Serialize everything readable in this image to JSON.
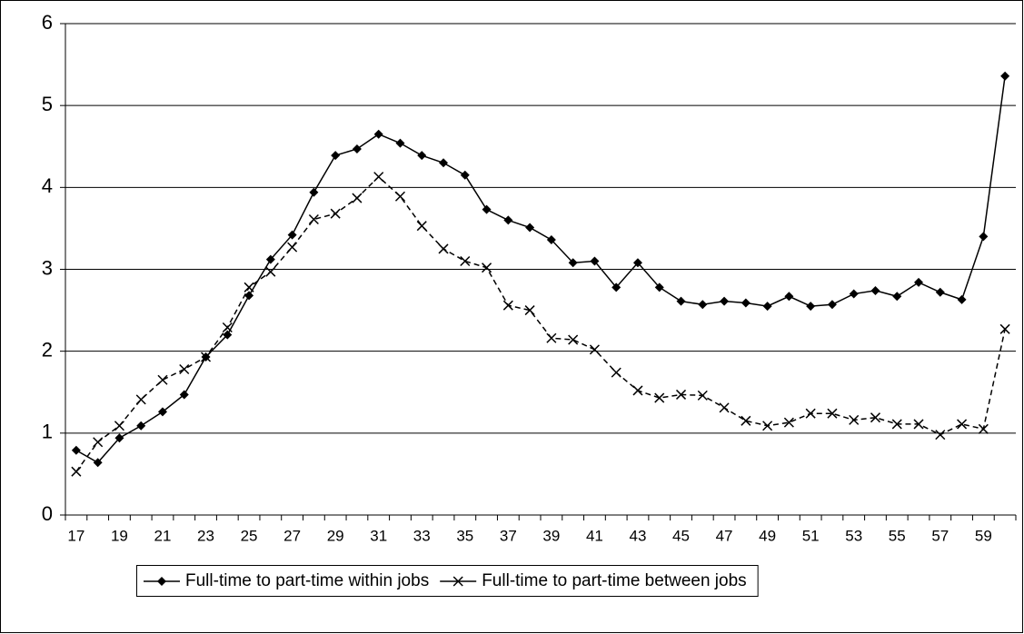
{
  "chart_data": {
    "type": "line",
    "categories": [
      "17",
      null,
      "19",
      null,
      "21",
      null,
      "23",
      null,
      "25",
      null,
      "27",
      null,
      "29",
      null,
      "31",
      null,
      "33",
      null,
      "35",
      null,
      "37",
      null,
      "39",
      null,
      "41",
      null,
      "43",
      null,
      "45",
      null,
      "47",
      null,
      "49",
      null,
      "51",
      null,
      "53",
      null,
      "55",
      null,
      "57",
      null,
      "59",
      null
    ],
    "series": [
      {
        "name": "Full-time to part-time within jobs",
        "color": "#000000",
        "marker": "diamond",
        "dashed": false,
        "values": [
          0.79,
          0.64,
          0.94,
          1.09,
          1.26,
          1.47,
          1.93,
          2.2,
          2.68,
          3.12,
          3.42,
          3.94,
          4.39,
          4.47,
          4.65,
          4.54,
          4.39,
          4.3,
          4.15,
          3.73,
          3.6,
          3.51,
          3.36,
          3.08,
          3.1,
          2.78,
          3.08,
          2.78,
          2.61,
          2.57,
          2.61,
          2.59,
          2.55,
          2.67,
          2.55,
          2.57,
          2.7,
          2.74,
          2.67,
          2.84,
          2.72,
          2.63,
          3.4,
          5.36
        ]
      },
      {
        "name": "Full-time to part-time between jobs",
        "color": "#000000",
        "marker": "x",
        "dashed": true,
        "values": [
          0.53,
          0.89,
          1.09,
          1.41,
          1.65,
          1.78,
          1.93,
          2.29,
          2.78,
          2.97,
          3.27,
          3.61,
          3.68,
          3.87,
          4.13,
          3.89,
          3.53,
          3.25,
          3.1,
          3.02,
          2.56,
          2.5,
          2.16,
          2.14,
          2.02,
          1.74,
          1.52,
          1.43,
          1.47,
          1.46,
          1.31,
          1.15,
          1.09,
          1.13,
          1.24,
          1.24,
          1.16,
          1.19,
          1.11,
          1.11,
          0.98,
          1.11,
          1.05,
          2.27
        ]
      }
    ],
    "ylim": [
      0,
      6
    ],
    "yticks": [
      0,
      1,
      2,
      3,
      4,
      5,
      6
    ],
    "grid": true,
    "legend": "bottom"
  }
}
